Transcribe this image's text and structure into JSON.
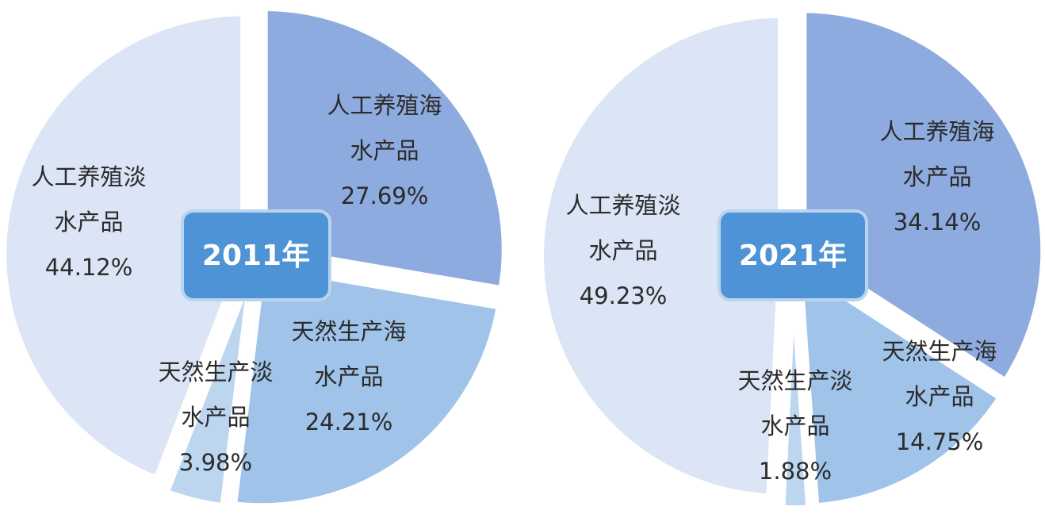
{
  "chart_data": [
    {
      "type": "pie",
      "center_label": "2011年",
      "slices": [
        {
          "name_line1": "人工养殖海",
          "name_line2": "水产品",
          "value": 27.69,
          "value_label": "27.69%",
          "color": "#8eabdf"
        },
        {
          "name_line1": "天然生产海",
          "name_line2": "水产品",
          "value": 24.21,
          "value_label": "24.21%",
          "color": "#9fc3e9"
        },
        {
          "name_line1": "天然生产淡",
          "name_line2": "水产品",
          "value": 3.98,
          "value_label": "3.98%",
          "color": "#bcd6f0"
        },
        {
          "name_line1": "人工养殖淡",
          "name_line2": "水产品",
          "value": 44.12,
          "value_label": "44.12%",
          "color": "#dbe5f6"
        }
      ]
    },
    {
      "type": "pie",
      "center_label": "2021年",
      "slices": [
        {
          "name_line1": "人工养殖海",
          "name_line2": "水产品",
          "value": 34.14,
          "value_label": "34.14%",
          "color": "#8eabdf"
        },
        {
          "name_line1": "天然生产海",
          "name_line2": "水产品",
          "value": 14.75,
          "value_label": "14.75%",
          "color": "#9fc3e9"
        },
        {
          "name_line1": "天然生产淡",
          "name_line2": "水产品",
          "value": 1.88,
          "value_label": "1.88%",
          "color": "#bcd6f0"
        },
        {
          "name_line1": "人工养殖淡",
          "name_line2": "水产品",
          "value": 49.23,
          "value_label": "49.23%",
          "color": "#dbe5f6"
        }
      ]
    }
  ],
  "colors": {
    "center_box_fill": "#4d93d6",
    "center_box_border": "#b9d4ee"
  }
}
